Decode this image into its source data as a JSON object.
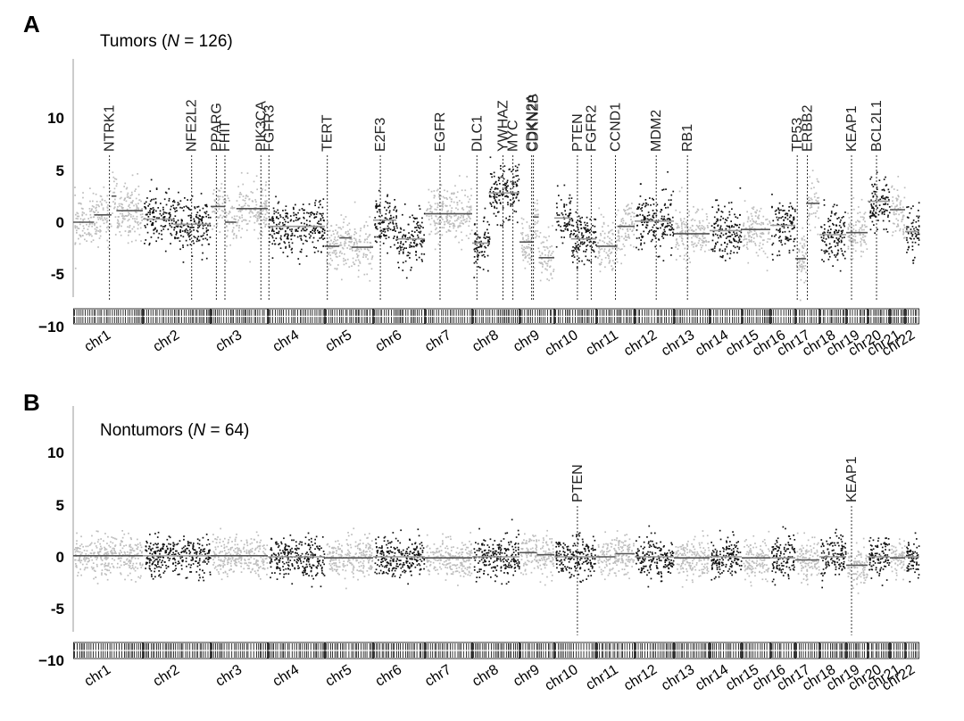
{
  "colors": {
    "even_chrom_points": "#bdbdbd",
    "odd_chrom_points": "#111111",
    "segment_line_light": "#9a9a9a",
    "segment_line_dark": "#555555",
    "marker_line": "#333333"
  },
  "chart_data": [
    {
      "type": "scatter",
      "panel": "A",
      "title_prefix": "Tumors (",
      "title_n": "N",
      "title_suffix": " = 126)",
      "ylim": [
        -10,
        15
      ],
      "yticks": [
        "10",
        "5",
        "0",
        "-5",
        "−10"
      ],
      "ytick_values": [
        10,
        5,
        0,
        -5,
        -10
      ],
      "chromosomes": [
        "chr1",
        "chr2",
        "chr3",
        "chr4",
        "chr5",
        "chr6",
        "chr7",
        "chr8",
        "chr9",
        "chr10",
        "chr11",
        "chr12",
        "chr13",
        "chr14",
        "chr15",
        "chr16",
        "chr17",
        "chr18",
        "chr19",
        "chr20",
        "chr21",
        "chr22"
      ],
      "chrom_segments": [
        [
          [
            0.0,
            0.3,
            0.0
          ],
          [
            0.3,
            0.55,
            0.7
          ],
          [
            0.55,
            0.62,
            2.5
          ],
          [
            0.62,
            1.0,
            1.1
          ]
        ],
        [
          [
            0.0,
            0.45,
            0.3
          ],
          [
            0.45,
            1.0,
            -0.2
          ]
        ],
        [
          [
            0.0,
            0.25,
            1.5
          ],
          [
            0.25,
            0.45,
            0.0
          ],
          [
            0.45,
            1.0,
            1.3
          ]
        ],
        [
          [
            0.0,
            1.0,
            -0.4
          ]
        ],
        [
          [
            0.0,
            0.3,
            -2.3
          ],
          [
            0.3,
            0.55,
            -1.5
          ],
          [
            0.55,
            1.0,
            -2.4
          ]
        ],
        [
          [
            0.0,
            0.45,
            0.2
          ],
          [
            0.45,
            1.0,
            -1.6
          ]
        ],
        [
          [
            0.0,
            1.0,
            0.8
          ]
        ],
        [
          [
            0.0,
            0.35,
            -2.0
          ],
          [
            0.35,
            1.0,
            2.8
          ]
        ],
        [
          [
            0.0,
            0.4,
            -1.9
          ],
          [
            0.4,
            0.55,
            0.5
          ],
          [
            0.55,
            1.0,
            -3.4
          ]
        ],
        [
          [
            0.0,
            0.4,
            0.4
          ],
          [
            0.4,
            1.0,
            -1.6
          ]
        ],
        [
          [
            0.0,
            0.55,
            -2.3
          ],
          [
            0.55,
            1.0,
            -0.4
          ]
        ],
        [
          [
            0.0,
            1.0,
            0.1
          ]
        ],
        [
          [
            0.0,
            1.0,
            -1.1
          ]
        ],
        [
          [
            0.0,
            1.0,
            -0.8
          ]
        ],
        [
          [
            0.0,
            1.0,
            -0.7
          ]
        ],
        [
          [
            0.0,
            1.0,
            -0.3
          ]
        ],
        [
          [
            0.0,
            0.45,
            -3.5
          ],
          [
            0.45,
            1.0,
            1.8
          ]
        ],
        [
          [
            0.0,
            1.0,
            -1.2
          ]
        ],
        [
          [
            0.0,
            1.0,
            -1.0
          ]
        ],
        [
          [
            0.0,
            1.0,
            2.0
          ]
        ],
        [
          [
            0.0,
            1.0,
            1.2
          ]
        ],
        [
          [
            0.0,
            1.0,
            -0.9
          ]
        ]
      ],
      "genes": [
        {
          "name": "NTRK1",
          "chrom": 1,
          "pos": 0.52
        },
        {
          "name": "NFE2L2",
          "chrom": 2,
          "pos": 0.72
        },
        {
          "name": "PPARG",
          "chrom": 3,
          "pos": 0.1
        },
        {
          "name": "FHIT",
          "chrom": 3,
          "pos": 0.25
        },
        {
          "name": "PIK3CA",
          "chrom": 3,
          "pos": 0.88
        },
        {
          "name": "FGFR3",
          "chrom": 4,
          "pos": 0.02
        },
        {
          "name": "TERT",
          "chrom": 5,
          "pos": 0.05
        },
        {
          "name": "E2F3",
          "chrom": 6,
          "pos": 0.14
        },
        {
          "name": "EGFR",
          "chrom": 7,
          "pos": 0.32
        },
        {
          "name": "DLC1",
          "chrom": 8,
          "pos": 0.1
        },
        {
          "name": "YWHAZ",
          "chrom": 8,
          "pos": 0.65
        },
        {
          "name": "MYC",
          "chrom": 8,
          "pos": 0.86
        },
        {
          "name": "CDKN2A",
          "chrom": 9,
          "pos": 0.35
        },
        {
          "name": "CDKN2B",
          "chrom": 9,
          "pos": 0.4
        },
        {
          "name": "PTEN",
          "chrom": 10,
          "pos": 0.55
        },
        {
          "name": "FGFR2",
          "chrom": 10,
          "pos": 0.88
        },
        {
          "name": "CCND1",
          "chrom": 11,
          "pos": 0.5
        },
        {
          "name": "MDM2",
          "chrom": 12,
          "pos": 0.55
        },
        {
          "name": "RB1",
          "chrom": 13,
          "pos": 0.38
        },
        {
          "name": "TP53",
          "chrom": 17,
          "pos": 0.08
        },
        {
          "name": "ERBB2",
          "chrom": 17,
          "pos": 0.5
        },
        {
          "name": "KEAP1",
          "chrom": 19,
          "pos": 0.25
        },
        {
          "name": "BCL2L1",
          "chrom": 20,
          "pos": 0.4
        }
      ]
    },
    {
      "type": "scatter",
      "panel": "B",
      "title_prefix": "Nontumors (",
      "title_n": "N",
      "title_suffix": " = 64)",
      "ylim": [
        -10,
        15
      ],
      "yticks": [
        "10",
        "5",
        "0",
        "-5",
        "−10"
      ],
      "ytick_values": [
        10,
        5,
        0,
        -5,
        -10
      ],
      "chromosomes": [
        "chr1",
        "chr2",
        "chr3",
        "chr4",
        "chr5",
        "chr6",
        "chr7",
        "chr8",
        "chr9",
        "chr10",
        "chr11",
        "chr12",
        "chr13",
        "chr14",
        "chr15",
        "chr16",
        "chr17",
        "chr18",
        "chr19",
        "chr20",
        "chr21",
        "chr22"
      ],
      "chrom_segments": [
        [
          [
            0.0,
            1.0,
            0.1
          ]
        ],
        [
          [
            0.0,
            1.0,
            0.1
          ]
        ],
        [
          [
            0.0,
            1.0,
            0.1
          ]
        ],
        [
          [
            0.0,
            1.0,
            0.0
          ]
        ],
        [
          [
            0.0,
            1.0,
            -0.1
          ]
        ],
        [
          [
            0.0,
            1.0,
            0.0
          ]
        ],
        [
          [
            0.0,
            1.0,
            -0.1
          ]
        ],
        [
          [
            0.0,
            1.0,
            0.0
          ]
        ],
        [
          [
            0.0,
            0.5,
            0.4
          ],
          [
            0.5,
            1.0,
            0.2
          ]
        ],
        [
          [
            0.0,
            1.0,
            0.0
          ]
        ],
        [
          [
            0.0,
            0.5,
            0.0
          ],
          [
            0.5,
            1.0,
            0.3
          ]
        ],
        [
          [
            0.0,
            1.0,
            0.0
          ]
        ],
        [
          [
            0.0,
            1.0,
            -0.1
          ]
        ],
        [
          [
            0.0,
            1.0,
            0.0
          ]
        ],
        [
          [
            0.0,
            1.0,
            -0.1
          ]
        ],
        [
          [
            0.0,
            1.0,
            -0.1
          ]
        ],
        [
          [
            0.0,
            1.0,
            -0.3
          ]
        ],
        [
          [
            0.0,
            1.0,
            0.0
          ]
        ],
        [
          [
            0.0,
            1.0,
            -0.8
          ]
        ],
        [
          [
            0.0,
            1.0,
            0.0
          ]
        ],
        [
          [
            0.0,
            1.0,
            -0.1
          ]
        ],
        [
          [
            0.0,
            1.0,
            0.0
          ]
        ]
      ],
      "genes": [
        {
          "name": "PTEN",
          "chrom": 10,
          "pos": 0.55
        },
        {
          "name": "KEAP1",
          "chrom": 19,
          "pos": 0.25
        }
      ]
    }
  ]
}
